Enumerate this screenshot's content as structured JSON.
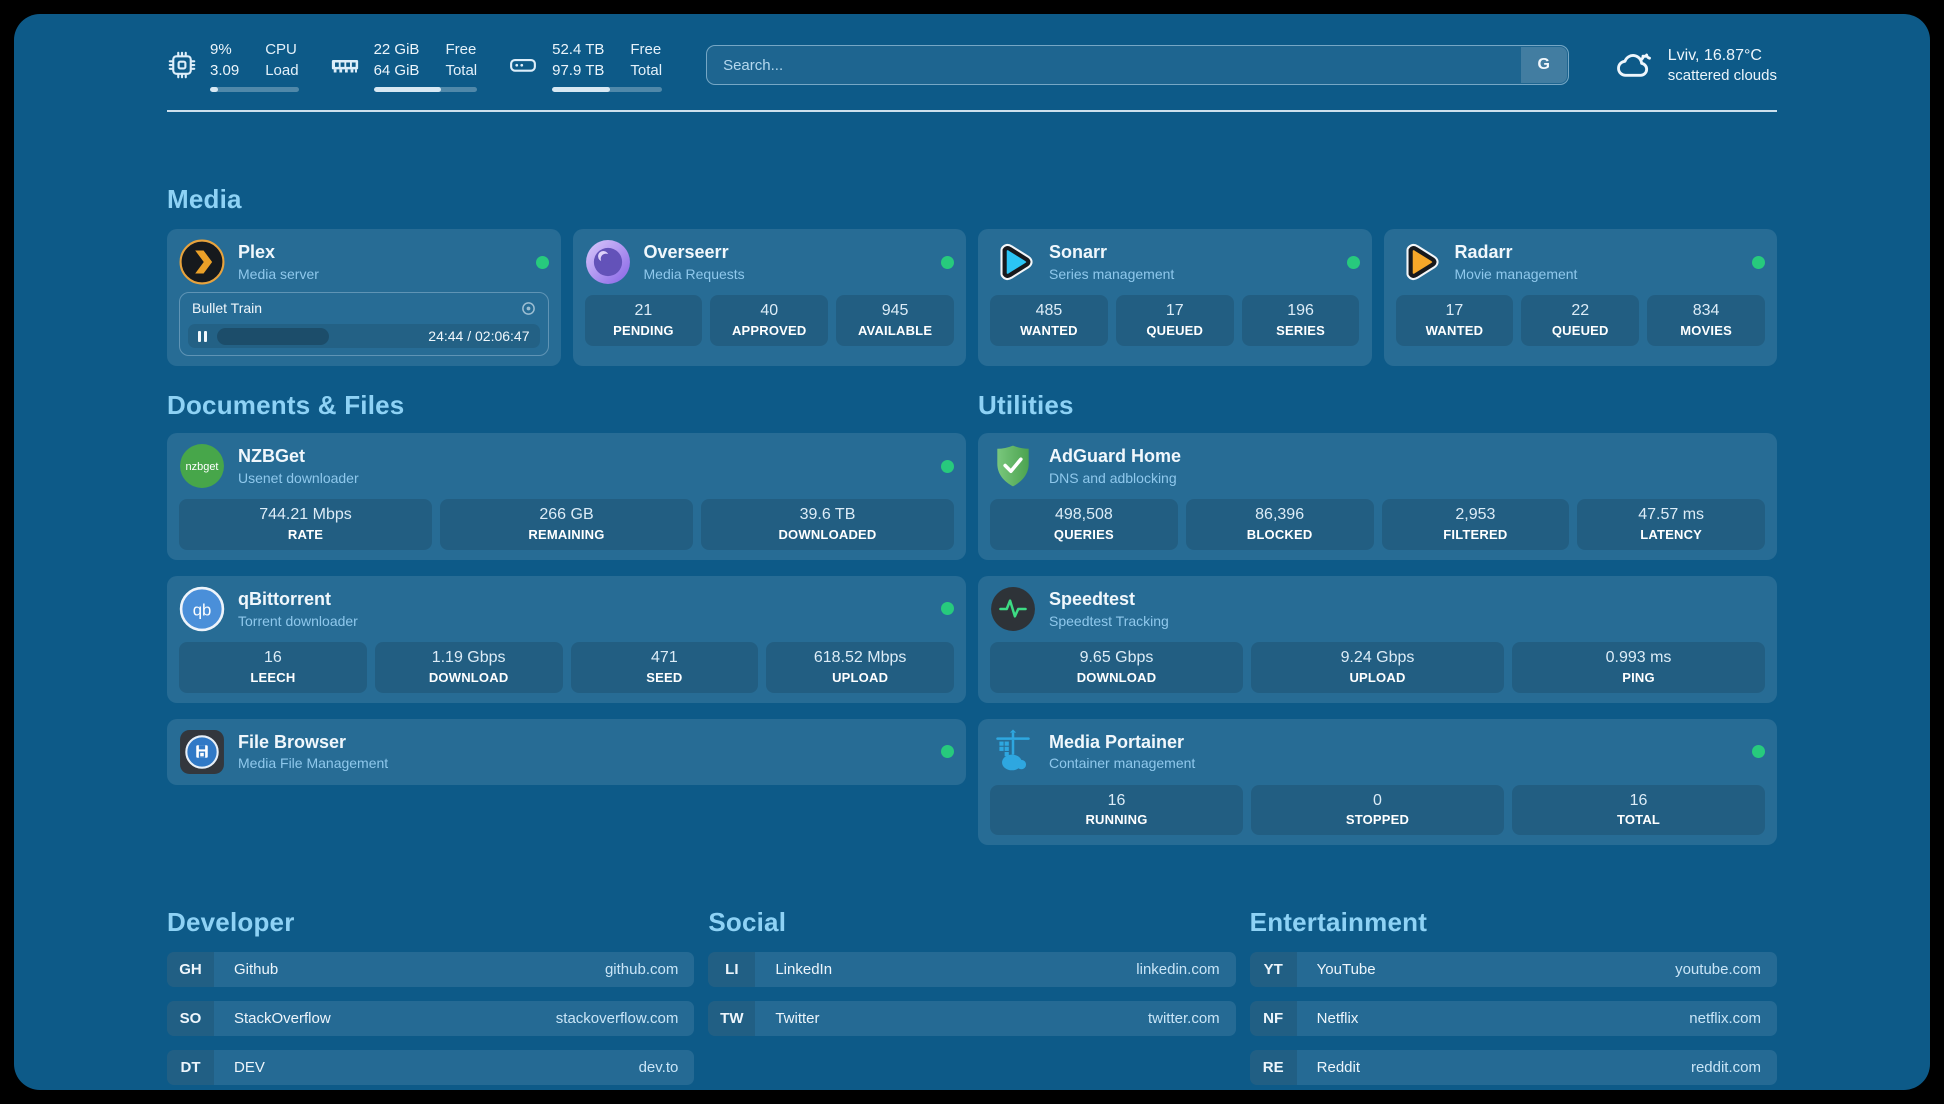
{
  "system": {
    "cpu": {
      "value_primary": "9%",
      "value_secondary": "3.09",
      "label_primary": "CPU",
      "label_secondary": "Load",
      "progress_pct": 9
    },
    "memory": {
      "value_primary": "22 GiB",
      "value_secondary": "64 GiB",
      "label_primary": "Free",
      "label_secondary": "Total",
      "progress_pct": 65
    },
    "storage": {
      "value_primary": "52.4 TB",
      "value_secondary": "97.9 TB",
      "label_primary": "Free",
      "label_secondary": "Total",
      "progress_pct": 53
    }
  },
  "search": {
    "placeholder": "Search...",
    "engine_button": "G"
  },
  "weather": {
    "location_temp": "Lviv, 16.87°C",
    "condition": "scattered clouds"
  },
  "media": {
    "title": "Media",
    "plex": {
      "name": "Plex",
      "description": "Media server",
      "player_title": "Bullet Train",
      "player_time": "24:44 / 02:06:47"
    },
    "overseerr": {
      "name": "Overseerr",
      "description": "Media Requests",
      "stats": [
        {
          "value": "21",
          "label": "PENDING"
        },
        {
          "value": "40",
          "label": "APPROVED"
        },
        {
          "value": "945",
          "label": "AVAILABLE"
        }
      ]
    },
    "sonarr": {
      "name": "Sonarr",
      "description": "Series management",
      "stats": [
        {
          "value": "485",
          "label": "WANTED"
        },
        {
          "value": "17",
          "label": "QUEUED"
        },
        {
          "value": "196",
          "label": "SERIES"
        }
      ]
    },
    "radarr": {
      "name": "Radarr",
      "description": "Movie management",
      "stats": [
        {
          "value": "17",
          "label": "WANTED"
        },
        {
          "value": "22",
          "label": "QUEUED"
        },
        {
          "value": "834",
          "label": "MOVIES"
        }
      ]
    }
  },
  "documents": {
    "title": "Documents & Files",
    "nzbget": {
      "name": "NZBGet",
      "description": "Usenet downloader",
      "stats": [
        {
          "value": "744.21 Mbps",
          "label": "RATE"
        },
        {
          "value": "266 GB",
          "label": "REMAINING"
        },
        {
          "value": "39.6 TB",
          "label": "DOWNLOADED"
        }
      ]
    },
    "qbittorrent": {
      "name": "qBittorrent",
      "description": "Torrent downloader",
      "stats": [
        {
          "value": "16",
          "label": "LEECH"
        },
        {
          "value": "1.19 Gbps",
          "label": "DOWNLOAD"
        },
        {
          "value": "471",
          "label": "SEED"
        },
        {
          "value": "618.52 Mbps",
          "label": "UPLOAD"
        }
      ]
    },
    "filebrowser": {
      "name": "File Browser",
      "description": "Media File Management"
    }
  },
  "utilities": {
    "title": "Utilities",
    "adguard": {
      "name": "AdGuard Home",
      "description": "DNS and adblocking",
      "stats": [
        {
          "value": "498,508",
          "label": "QUERIES"
        },
        {
          "value": "86,396",
          "label": "BLOCKED"
        },
        {
          "value": "2,953",
          "label": "FILTERED"
        },
        {
          "value": "47.57 ms",
          "label": "LATENCY"
        }
      ]
    },
    "speedtest": {
      "name": "Speedtest",
      "description": "Speedtest Tracking",
      "stats": [
        {
          "value": "9.65 Gbps",
          "label": "DOWNLOAD"
        },
        {
          "value": "9.24 Gbps",
          "label": "UPLOAD"
        },
        {
          "value": "0.993 ms",
          "label": "PING"
        }
      ]
    },
    "portainer": {
      "name": "Media Portainer",
      "description": "Container management",
      "stats": [
        {
          "value": "16",
          "label": "RUNNING"
        },
        {
          "value": "0",
          "label": "STOPPED"
        },
        {
          "value": "16",
          "label": "TOTAL"
        }
      ]
    }
  },
  "bookmarks": [
    {
      "title": "Developer",
      "links": [
        {
          "abbr": "GH",
          "name": "Github",
          "url": "github.com"
        },
        {
          "abbr": "SO",
          "name": "StackOverflow",
          "url": "stackoverflow.com"
        },
        {
          "abbr": "DT",
          "name": "DEV",
          "url": "dev.to"
        }
      ]
    },
    {
      "title": "Social",
      "links": [
        {
          "abbr": "LI",
          "name": "LinkedIn",
          "url": "linkedin.com"
        },
        {
          "abbr": "TW",
          "name": "Twitter",
          "url": "twitter.com"
        }
      ]
    },
    {
      "title": "Entertainment",
      "links": [
        {
          "abbr": "YT",
          "name": "YouTube",
          "url": "youtube.com"
        },
        {
          "abbr": "NF",
          "name": "Netflix",
          "url": "netflix.com"
        },
        {
          "abbr": "RE",
          "name": "Reddit",
          "url": "reddit.com"
        }
      ]
    }
  ],
  "icons": {
    "nzbget_text": "nzbget",
    "qbittorrent_text": "qb"
  },
  "colors": {
    "background": "#0d5a88",
    "status_online": "#27ca7d",
    "section_title": "#8ed2f5"
  }
}
